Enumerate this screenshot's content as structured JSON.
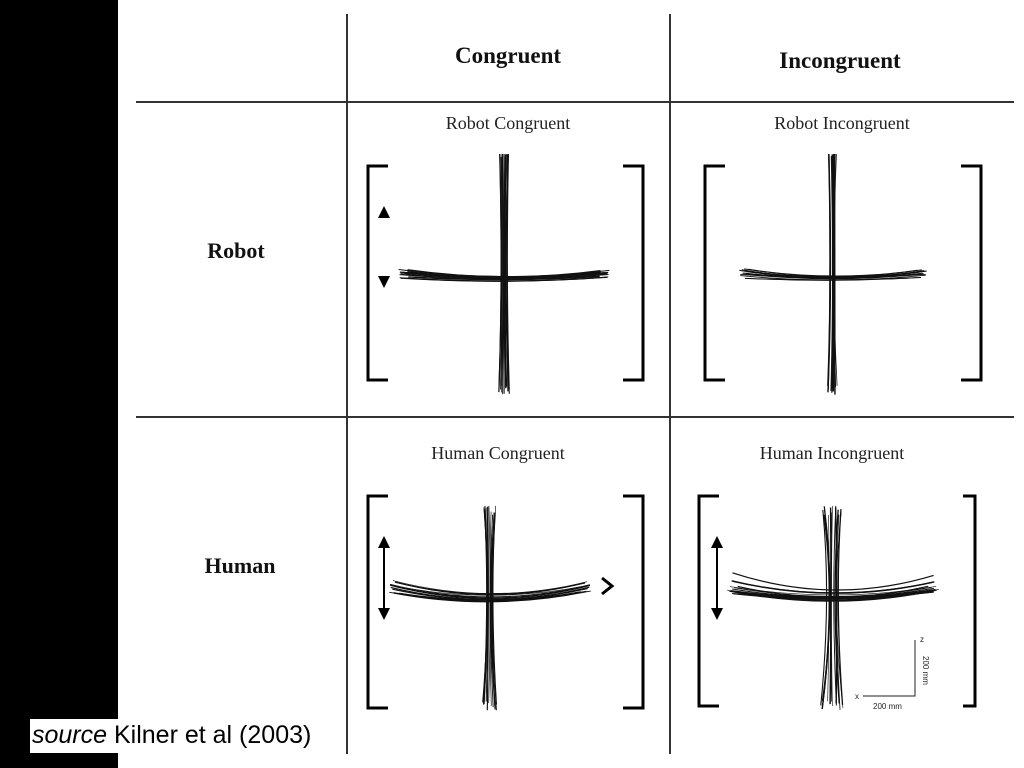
{
  "columns": [
    "Congruent",
    "Incongruent"
  ],
  "rows": [
    "Robot",
    "Human"
  ],
  "panels": {
    "robot_congruent": "Robot Congruent",
    "robot_incongruent": "Robot Incongruent",
    "human_congruent": "Human Congruent",
    "human_incongruent": "Human Incongruent"
  },
  "scale": {
    "z_axis": "z",
    "x_axis": "x",
    "vertical": "200 mm",
    "horizontal": "200 mm"
  },
  "caption": {
    "prefix": "source",
    "text": "Kilner et al (2003)"
  }
}
